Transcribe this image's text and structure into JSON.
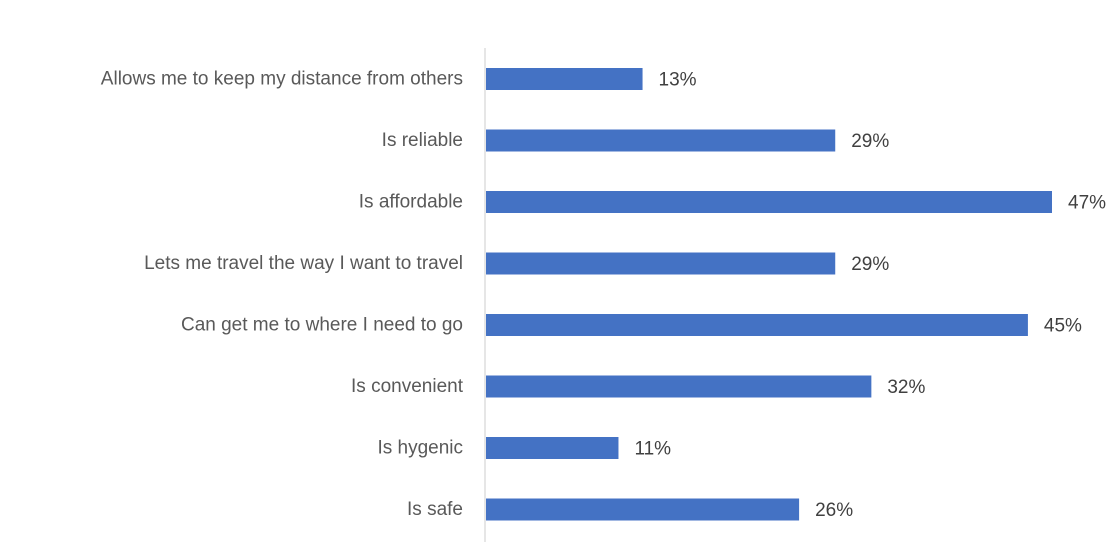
{
  "chart_data": {
    "type": "bar",
    "orientation": "horizontal",
    "categories": [
      "Allows me to keep my distance from others",
      "Is reliable",
      "Is affordable",
      "Lets me travel the way I want to travel",
      "Can get me to where I need to go",
      "Is convenient",
      "Is hygenic",
      "Is safe"
    ],
    "values": [
      13,
      29,
      47,
      29,
      45,
      32,
      11,
      26
    ],
    "value_labels": [
      "13%",
      "29%",
      "47%",
      "29%",
      "45%",
      "32%",
      "11%",
      "26%"
    ],
    "unit": "%",
    "xlim": [
      0,
      47
    ],
    "grid": false,
    "legend": "none",
    "colors": {
      "bar": "#4472C4",
      "axis": "#D9D9D9",
      "category_text": "#595959",
      "value_text": "#404040"
    }
  }
}
